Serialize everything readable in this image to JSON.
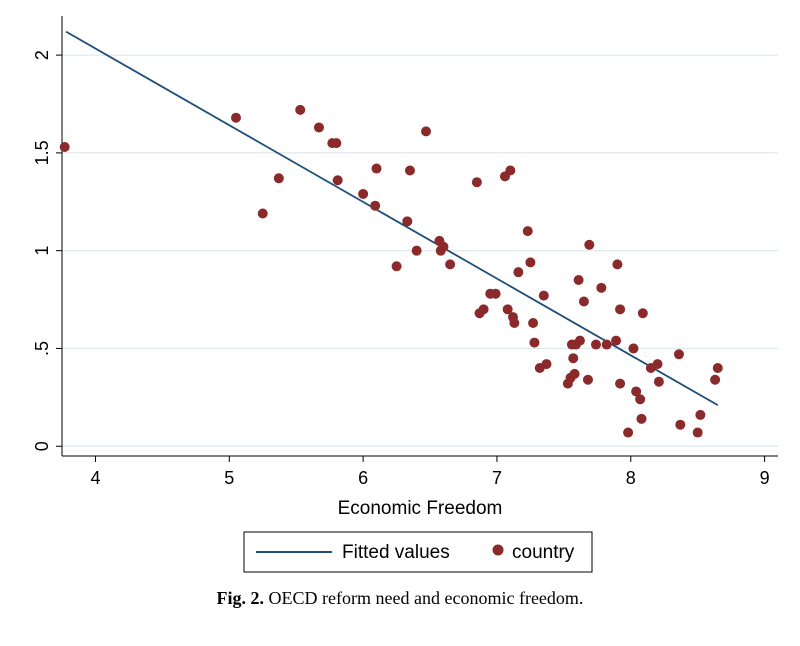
{
  "chart_data": {
    "type": "scatter",
    "xlabel": "Economic Freedom",
    "ylabel": "",
    "xlim": [
      3.75,
      9.1
    ],
    "ylim": [
      -0.05,
      2.2
    ],
    "xticks": [
      "4",
      "5",
      "6",
      "7",
      "8",
      "9"
    ],
    "yticks": [
      "0",
      ".5",
      "1",
      "1.5",
      "2"
    ],
    "grid": "horizontal",
    "legend_position": "bottom",
    "colors": {
      "fit": "#1f4e79",
      "points": "#8b2a2a",
      "grid": "#dde8ee"
    },
    "series": [
      {
        "name": "Fitted values",
        "kind": "line",
        "x": [
          3.78,
          8.65
        ],
        "y": [
          2.12,
          0.21
        ]
      },
      {
        "name": "country",
        "kind": "scatter",
        "points": [
          [
            3.77,
            1.53
          ],
          [
            5.05,
            1.68
          ],
          [
            5.25,
            1.19
          ],
          [
            5.37,
            1.37
          ],
          [
            5.53,
            1.72
          ],
          [
            5.67,
            1.63
          ],
          [
            5.77,
            1.55
          ],
          [
            5.8,
            1.55
          ],
          [
            5.81,
            1.36
          ],
          [
            6.0,
            1.29
          ],
          [
            6.09,
            1.23
          ],
          [
            6.1,
            1.42
          ],
          [
            6.25,
            0.92
          ],
          [
            6.33,
            1.15
          ],
          [
            6.35,
            1.41
          ],
          [
            6.4,
            1.0
          ],
          [
            6.47,
            1.61
          ],
          [
            6.57,
            1.05
          ],
          [
            6.58,
            1.0
          ],
          [
            6.6,
            1.02
          ],
          [
            6.65,
            0.93
          ],
          [
            6.85,
            1.35
          ],
          [
            6.87,
            0.68
          ],
          [
            6.9,
            0.7
          ],
          [
            6.95,
            0.78
          ],
          [
            6.99,
            0.78
          ],
          [
            7.06,
            1.38
          ],
          [
            7.08,
            0.7
          ],
          [
            7.1,
            1.41
          ],
          [
            7.12,
            0.66
          ],
          [
            7.13,
            0.63
          ],
          [
            7.16,
            0.89
          ],
          [
            7.23,
            1.1
          ],
          [
            7.25,
            0.94
          ],
          [
            7.27,
            0.63
          ],
          [
            7.28,
            0.53
          ],
          [
            7.32,
            0.4
          ],
          [
            7.35,
            0.77
          ],
          [
            7.37,
            0.42
          ],
          [
            7.53,
            0.32
          ],
          [
            7.55,
            0.35
          ],
          [
            7.56,
            0.52
          ],
          [
            7.57,
            0.45
          ],
          [
            7.58,
            0.37
          ],
          [
            7.59,
            0.52
          ],
          [
            7.61,
            0.85
          ],
          [
            7.62,
            0.54
          ],
          [
            7.65,
            0.74
          ],
          [
            7.68,
            0.34
          ],
          [
            7.69,
            1.03
          ],
          [
            7.74,
            0.52
          ],
          [
            7.78,
            0.81
          ],
          [
            7.82,
            0.52
          ],
          [
            7.89,
            0.54
          ],
          [
            7.9,
            0.93
          ],
          [
            7.92,
            0.32
          ],
          [
            7.92,
            0.7
          ],
          [
            7.98,
            0.07
          ],
          [
            8.02,
            0.5
          ],
          [
            8.04,
            0.28
          ],
          [
            8.07,
            0.24
          ],
          [
            8.08,
            0.14
          ],
          [
            8.09,
            0.68
          ],
          [
            8.15,
            0.4
          ],
          [
            8.2,
            0.42
          ],
          [
            8.21,
            0.33
          ],
          [
            8.36,
            0.47
          ],
          [
            8.37,
            0.11
          ],
          [
            8.5,
            0.07
          ],
          [
            8.52,
            0.16
          ],
          [
            8.63,
            0.34
          ],
          [
            8.65,
            0.4
          ]
        ]
      }
    ]
  },
  "caption": {
    "label": "Fig. 2.",
    "text": "OECD reform need and economic freedom."
  }
}
